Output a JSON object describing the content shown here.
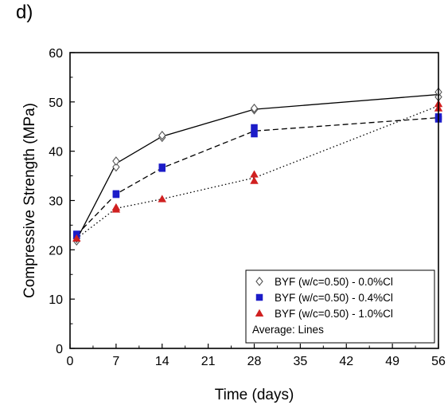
{
  "panel_label": "d)",
  "chart_data": {
    "type": "scatter",
    "title": "",
    "xlabel": "Time (days)",
    "ylabel": "Compressive Strength (MPa)",
    "xlim": [
      0,
      56
    ],
    "ylim": [
      0,
      60
    ],
    "xticks": [
      0,
      7,
      14,
      21,
      28,
      35,
      42,
      49,
      56
    ],
    "yticks": [
      0,
      10,
      20,
      30,
      40,
      50,
      60
    ],
    "grid": false,
    "legend_placement": "bottom-right",
    "series": [
      {
        "name": "BYF (w/c=0.50) - 0.0%Cl",
        "marker": "diamond",
        "marker_color": "#ffffff",
        "marker_edge": "#555555",
        "line_style": "solid",
        "points": [
          [
            1,
            21.8
          ],
          [
            1,
            22.3
          ],
          [
            7,
            36.8
          ],
          [
            7,
            38.0
          ],
          [
            14,
            42.8
          ],
          [
            14,
            43.2
          ],
          [
            28,
            48.4
          ],
          [
            28,
            48.7
          ],
          [
            56,
            51.0
          ],
          [
            56,
            52.0
          ]
        ],
        "average": [
          [
            1,
            22.0
          ],
          [
            7,
            37.5
          ],
          [
            14,
            43.0
          ],
          [
            28,
            48.5
          ],
          [
            56,
            51.5
          ]
        ]
      },
      {
        "name": "BYF (w/c=0.50) - 0.4%Cl",
        "marker": "square",
        "marker_color": "#1c1cc8",
        "line_style": "dashed",
        "points": [
          [
            1,
            22.9
          ],
          [
            1,
            23.2
          ],
          [
            7,
            31.2
          ],
          [
            7,
            31.4
          ],
          [
            14,
            36.5
          ],
          [
            14,
            36.8
          ],
          [
            28,
            43.5
          ],
          [
            28,
            44.8
          ],
          [
            56,
            46.5
          ],
          [
            56,
            47.0
          ]
        ],
        "average": [
          [
            1,
            23.0
          ],
          [
            7,
            31.3
          ],
          [
            14,
            36.6
          ],
          [
            28,
            44.1
          ],
          [
            56,
            46.8
          ]
        ]
      },
      {
        "name": "BYF (w/c=0.50) - 1.0%Cl",
        "marker": "triangle",
        "marker_color": "#d02020",
        "line_style": "dotted",
        "points": [
          [
            1,
            22.3
          ],
          [
            7,
            28.2
          ],
          [
            7,
            28.6
          ],
          [
            14,
            30.3
          ],
          [
            28,
            34.0
          ],
          [
            28,
            35.3
          ],
          [
            56,
            48.7
          ],
          [
            56,
            49.6
          ]
        ],
        "average": [
          [
            1,
            22.3
          ],
          [
            7,
            28.4
          ],
          [
            14,
            30.3
          ],
          [
            28,
            34.6
          ],
          [
            56,
            49.2
          ]
        ]
      }
    ],
    "legend_note": "Average: Lines"
  }
}
